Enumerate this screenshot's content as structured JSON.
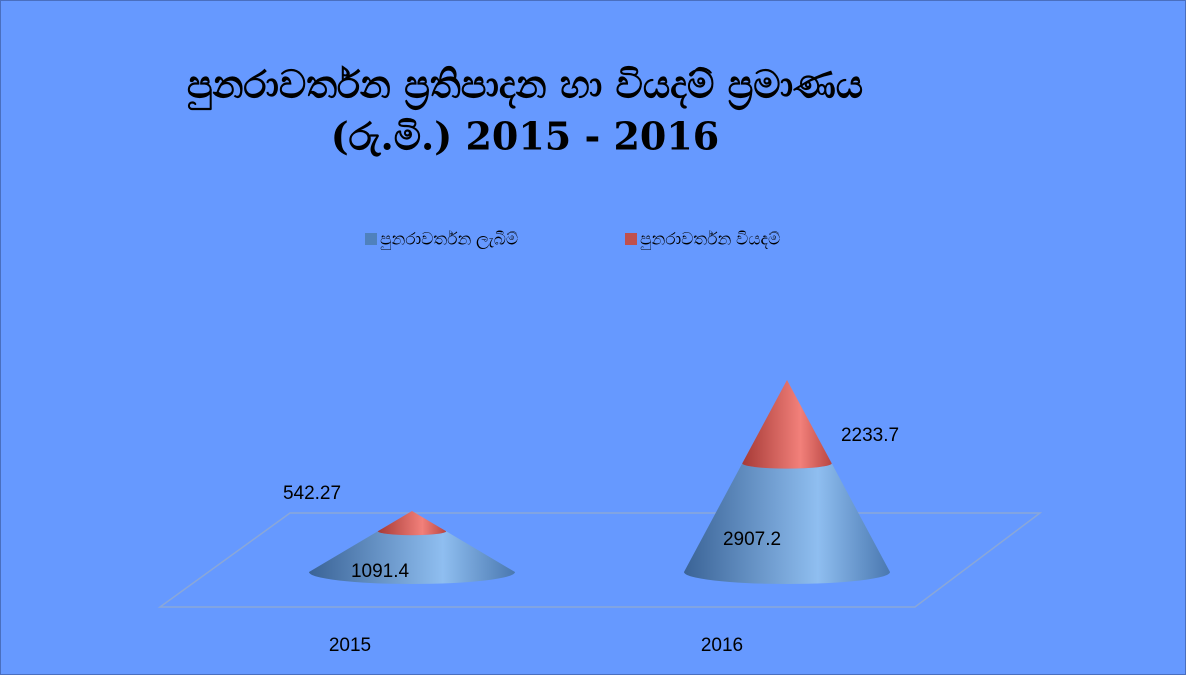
{
  "chart_data": {
    "type": "cone",
    "title": "පුනරාවර්තන ප්‍රතිපාදන හා වියදම් ප්‍රමාණය",
    "subtitle": "(රු.මි.) 2015 - 2016",
    "categories": [
      "2015",
      "2016"
    ],
    "series": [
      {
        "name": "පුනරාවර්තන ලැබීම්",
        "color": "#4f81bd",
        "values": [
          1091.4,
          2907.2
        ]
      },
      {
        "name": "පුනරාවර්තන වියදම්",
        "color": "#c0504d",
        "values": [
          542.27,
          2233.7
        ]
      }
    ],
    "stacked": true,
    "legend": "top"
  }
}
